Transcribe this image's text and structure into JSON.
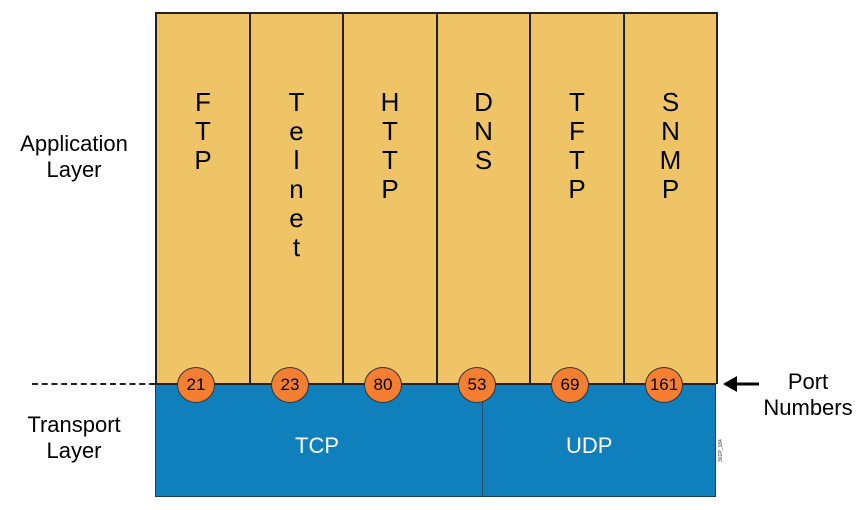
{
  "layers": {
    "application": "Application\nLayer",
    "transport": "Transport\nLayer"
  },
  "protocols": [
    {
      "name": "FTP",
      "port": "21"
    },
    {
      "name": "Telnet",
      "port": "23"
    },
    {
      "name": "HTTP",
      "port": "80"
    },
    {
      "name": "DNS",
      "port": "53"
    },
    {
      "name": "TFTP",
      "port": "69"
    },
    {
      "name": "SNMP",
      "port": "161"
    }
  ],
  "transport": {
    "tcp": "TCP",
    "udp": "UDP"
  },
  "port_numbers_label": "Port\nNumbers",
  "figure_id": "301P_184",
  "colors": {
    "application": "#eec466",
    "transport": "#1080bd",
    "port_circle": "#f47e32"
  }
}
